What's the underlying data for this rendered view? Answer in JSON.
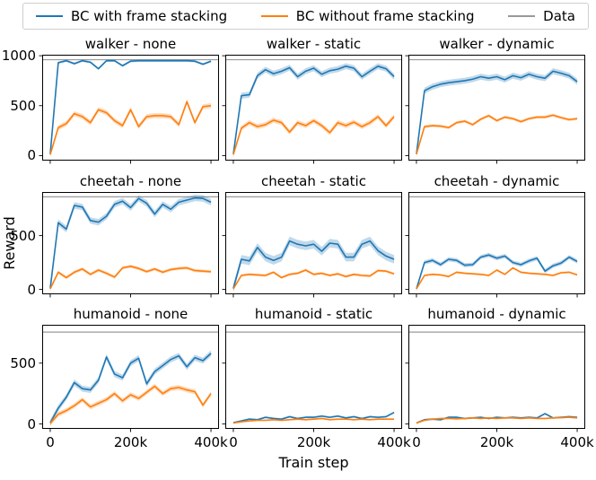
{
  "legend": {
    "items": [
      {
        "label": "BC with frame stacking",
        "color": "#1f77b4"
      },
      {
        "label": "BC without frame stacking",
        "color": "#ff7f0e"
      },
      {
        "label": "Data",
        "color": "#999999"
      }
    ]
  },
  "axes": {
    "ylabel": "Reward",
    "xlabel": "Train step"
  },
  "chart_data": [
    {
      "type": "line",
      "title": "walker - none",
      "x": [
        0,
        20,
        40,
        60,
        80,
        100,
        120,
        140,
        160,
        180,
        200,
        220,
        240,
        260,
        280,
        300,
        320,
        340,
        360,
        380,
        400
      ],
      "xticks": [
        0,
        200,
        400
      ],
      "xtick_labels": [
        "0",
        "200k",
        "400k"
      ],
      "xlim": [
        -20,
        420
      ],
      "yticks": [
        0,
        500,
        1000
      ],
      "ytick_labels": [
        "0",
        "500",
        "1000"
      ],
      "ylim": [
        -50,
        1010
      ],
      "data_value": 960,
      "series": [
        {
          "name": "BC with frame stacking",
          "color": "#1f77b4",
          "band": 12,
          "values": [
            15,
            930,
            950,
            920,
            950,
            935,
            870,
            950,
            950,
            900,
            945,
            950,
            950,
            950,
            950,
            950,
            950,
            950,
            945,
            915,
            945
          ]
        },
        {
          "name": "BC without frame stacking",
          "color": "#ff7f0e",
          "band": 25,
          "values": [
            10,
            280,
            320,
            420,
            390,
            330,
            460,
            430,
            350,
            300,
            460,
            290,
            390,
            400,
            400,
            390,
            310,
            540,
            330,
            490,
            500
          ]
        }
      ]
    },
    {
      "type": "line",
      "title": "walker - static",
      "x": [
        0,
        20,
        40,
        60,
        80,
        100,
        120,
        140,
        160,
        180,
        200,
        220,
        240,
        260,
        280,
        300,
        320,
        340,
        360,
        380,
        400
      ],
      "xticks": [
        0,
        200,
        400
      ],
      "xtick_labels": [
        "0",
        "200k",
        "400k"
      ],
      "xlim": [
        -20,
        420
      ],
      "yticks": [
        0,
        500,
        1000
      ],
      "ytick_labels": [
        "0",
        "500",
        "1000"
      ],
      "ylim": [
        -50,
        1010
      ],
      "data_value": 960,
      "series": [
        {
          "name": "BC with frame stacking",
          "color": "#1f77b4",
          "band": 30,
          "values": [
            15,
            600,
            610,
            800,
            860,
            820,
            845,
            880,
            790,
            845,
            875,
            815,
            850,
            865,
            895,
            875,
            790,
            845,
            895,
            870,
            790
          ]
        },
        {
          "name": "BC without frame stacking",
          "color": "#ff7f0e",
          "band": 25,
          "values": [
            10,
            275,
            330,
            290,
            310,
            355,
            330,
            235,
            330,
            300,
            350,
            300,
            230,
            330,
            300,
            335,
            290,
            330,
            390,
            300,
            390
          ]
        }
      ]
    },
    {
      "type": "line",
      "title": "walker - dynamic",
      "x": [
        0,
        20,
        40,
        60,
        80,
        100,
        120,
        140,
        160,
        180,
        200,
        220,
        240,
        260,
        280,
        300,
        320,
        340,
        360,
        380,
        400
      ],
      "xticks": [
        0,
        200,
        400
      ],
      "xtick_labels": [
        "0",
        "200k",
        "400k"
      ],
      "xlim": [
        -20,
        420
      ],
      "yticks": [
        0,
        500,
        1000
      ],
      "ytick_labels": [
        "0",
        "500",
        "1000"
      ],
      "ylim": [
        -50,
        1010
      ],
      "data_value": 960,
      "series": [
        {
          "name": "BC with frame stacking",
          "color": "#1f77b4",
          "band": 30,
          "values": [
            15,
            650,
            690,
            715,
            730,
            740,
            750,
            765,
            790,
            775,
            790,
            760,
            800,
            780,
            815,
            790,
            775,
            845,
            825,
            800,
            740
          ]
        },
        {
          "name": "BC without frame stacking",
          "color": "#ff7f0e",
          "band": 15,
          "values": [
            15,
            290,
            300,
            295,
            280,
            330,
            345,
            310,
            365,
            400,
            350,
            385,
            370,
            340,
            370,
            385,
            385,
            405,
            380,
            360,
            370
          ]
        }
      ]
    },
    {
      "type": "line",
      "title": "cheetah - none",
      "x": [
        0,
        20,
        40,
        60,
        80,
        100,
        120,
        140,
        160,
        180,
        200,
        220,
        240,
        260,
        280,
        300,
        320,
        340,
        360,
        380,
        400
      ],
      "xticks": [
        0,
        200,
        400
      ],
      "xtick_labels": [
        "0",
        "200k",
        "400k"
      ],
      "xlim": [
        -20,
        420
      ],
      "yticks": [
        0,
        500
      ],
      "ytick_labels": [
        "0",
        "500"
      ],
      "ylim": [
        -45,
        905
      ],
      "data_value": 860,
      "series": [
        {
          "name": "BC with frame stacking",
          "color": "#1f77b4",
          "band": 30,
          "values": [
            10,
            620,
            560,
            780,
            765,
            640,
            625,
            680,
            790,
            820,
            760,
            845,
            800,
            700,
            790,
            745,
            810,
            830,
            850,
            845,
            810
          ]
        },
        {
          "name": "BC without frame stacking",
          "color": "#ff7f0e",
          "band": 15,
          "values": [
            5,
            160,
            110,
            160,
            190,
            140,
            180,
            150,
            115,
            200,
            215,
            195,
            165,
            190,
            160,
            185,
            195,
            200,
            175,
            170,
            165
          ]
        }
      ]
    },
    {
      "type": "line",
      "title": "cheetah - static",
      "x": [
        0,
        20,
        40,
        60,
        80,
        100,
        120,
        140,
        160,
        180,
        200,
        220,
        240,
        260,
        280,
        300,
        320,
        340,
        360,
        380,
        400
      ],
      "xticks": [
        0,
        200,
        400
      ],
      "xtick_labels": [
        "0",
        "200k",
        "400k"
      ],
      "xlim": [
        -20,
        420
      ],
      "yticks": [
        0,
        500
      ],
      "ytick_labels": [
        "0",
        "500"
      ],
      "ylim": [
        -45,
        905
      ],
      "data_value": 860,
      "series": [
        {
          "name": "BC with frame stacking",
          "color": "#1f77b4",
          "band": 40,
          "values": [
            10,
            280,
            265,
            390,
            300,
            270,
            300,
            450,
            420,
            405,
            420,
            355,
            430,
            420,
            300,
            300,
            420,
            450,
            360,
            310,
            280
          ]
        },
        {
          "name": "BC without frame stacking",
          "color": "#ff7f0e",
          "band": 12,
          "values": [
            5,
            130,
            140,
            135,
            130,
            160,
            110,
            140,
            150,
            180,
            140,
            150,
            130,
            145,
            120,
            140,
            130,
            125,
            175,
            170,
            145
          ]
        }
      ]
    },
    {
      "type": "line",
      "title": "cheetah - dynamic",
      "x": [
        0,
        20,
        40,
        60,
        80,
        100,
        120,
        140,
        160,
        180,
        200,
        220,
        240,
        260,
        280,
        300,
        320,
        340,
        360,
        380,
        400
      ],
      "xticks": [
        0,
        200,
        400
      ],
      "xtick_labels": [
        "0",
        "200k",
        "400k"
      ],
      "xlim": [
        -20,
        420
      ],
      "yticks": [
        0,
        500
      ],
      "ytick_labels": [
        "0",
        "500"
      ],
      "ylim": [
        -45,
        905
      ],
      "data_value": 860,
      "series": [
        {
          "name": "BC with frame stacking",
          "color": "#1f77b4",
          "band": 20,
          "values": [
            5,
            250,
            270,
            230,
            280,
            270,
            225,
            230,
            300,
            320,
            290,
            310,
            250,
            230,
            265,
            290,
            170,
            220,
            245,
            300,
            260
          ]
        },
        {
          "name": "BC without frame stacking",
          "color": "#ff7f0e",
          "band": 10,
          "values": [
            5,
            130,
            140,
            135,
            120,
            160,
            150,
            145,
            140,
            130,
            180,
            140,
            200,
            160,
            150,
            145,
            140,
            130,
            155,
            160,
            135
          ]
        }
      ]
    },
    {
      "type": "line",
      "title": "humanoid - none",
      "x": [
        0,
        20,
        40,
        60,
        80,
        100,
        120,
        140,
        160,
        180,
        200,
        220,
        240,
        260,
        280,
        300,
        320,
        340,
        360,
        380,
        400
      ],
      "xticks": [
        0,
        200,
        400
      ],
      "xtick_labels": [
        "0",
        "200k",
        "400k"
      ],
      "xlim": [
        -20,
        420
      ],
      "yticks": [
        0,
        500
      ],
      "ytick_labels": [
        "0",
        "500"
      ],
      "ylim": [
        -40,
        815
      ],
      "data_value": 755,
      "series": [
        {
          "name": "BC with frame stacking",
          "color": "#1f77b4",
          "band": 25,
          "values": [
            10,
            130,
            220,
            340,
            290,
            280,
            360,
            550,
            410,
            380,
            500,
            540,
            330,
            430,
            480,
            530,
            560,
            470,
            545,
            520,
            580
          ]
        },
        {
          "name": "BC without frame stacking",
          "color": "#ff7f0e",
          "band": 20,
          "values": [
            5,
            80,
            110,
            150,
            200,
            140,
            170,
            200,
            250,
            190,
            240,
            210,
            260,
            310,
            250,
            290,
            300,
            280,
            265,
            155,
            250
          ]
        }
      ]
    },
    {
      "type": "line",
      "title": "humanoid - static",
      "x": [
        0,
        20,
        40,
        60,
        80,
        100,
        120,
        140,
        160,
        180,
        200,
        220,
        240,
        260,
        280,
        300,
        320,
        340,
        360,
        380,
        400
      ],
      "xticks": [
        0,
        200,
        400
      ],
      "xtick_labels": [
        "0",
        "200k",
        "400k"
      ],
      "xlim": [
        -20,
        420
      ],
      "yticks": [
        0,
        500
      ],
      "ytick_labels": [
        "0",
        "500"
      ],
      "ylim": [
        -40,
        815
      ],
      "data_value": 755,
      "series": [
        {
          "name": "BC with frame stacking",
          "color": "#1f77b4",
          "band": 8,
          "values": [
            10,
            25,
            40,
            35,
            55,
            45,
            40,
            60,
            45,
            55,
            55,
            65,
            55,
            65,
            50,
            60,
            45,
            60,
            55,
            60,
            95
          ]
        },
        {
          "name": "BC without frame stacking",
          "color": "#ff7f0e",
          "band": 6,
          "values": [
            8,
            18,
            25,
            30,
            30,
            35,
            30,
            35,
            40,
            35,
            40,
            45,
            35,
            40,
            40,
            35,
            40,
            35,
            40,
            40,
            40
          ]
        }
      ]
    },
    {
      "type": "line",
      "title": "humanoid - dynamic",
      "x": [
        0,
        20,
        40,
        60,
        80,
        100,
        120,
        140,
        160,
        180,
        200,
        220,
        240,
        260,
        280,
        300,
        320,
        340,
        360,
        380,
        400
      ],
      "xticks": [
        0,
        200,
        400
      ],
      "xtick_labels": [
        "0",
        "200k",
        "400k"
      ],
      "xlim": [
        -20,
        420
      ],
      "yticks": [
        0,
        500
      ],
      "ytick_labels": [
        "0",
        "500"
      ],
      "ylim": [
        -40,
        815
      ],
      "data_value": 755,
      "series": [
        {
          "name": "BC with frame stacking",
          "color": "#1f77b4",
          "band": 8,
          "values": [
            8,
            35,
            40,
            35,
            55,
            55,
            45,
            50,
            55,
            45,
            55,
            50,
            55,
            50,
            55,
            50,
            85,
            50,
            55,
            60,
            55
          ]
        },
        {
          "name": "BC without frame stacking",
          "color": "#ff7f0e",
          "band": 6,
          "values": [
            8,
            30,
            40,
            45,
            45,
            42,
            45,
            50,
            45,
            50,
            45,
            50,
            50,
            45,
            50,
            45,
            45,
            50,
            52,
            55,
            50
          ]
        }
      ]
    }
  ]
}
